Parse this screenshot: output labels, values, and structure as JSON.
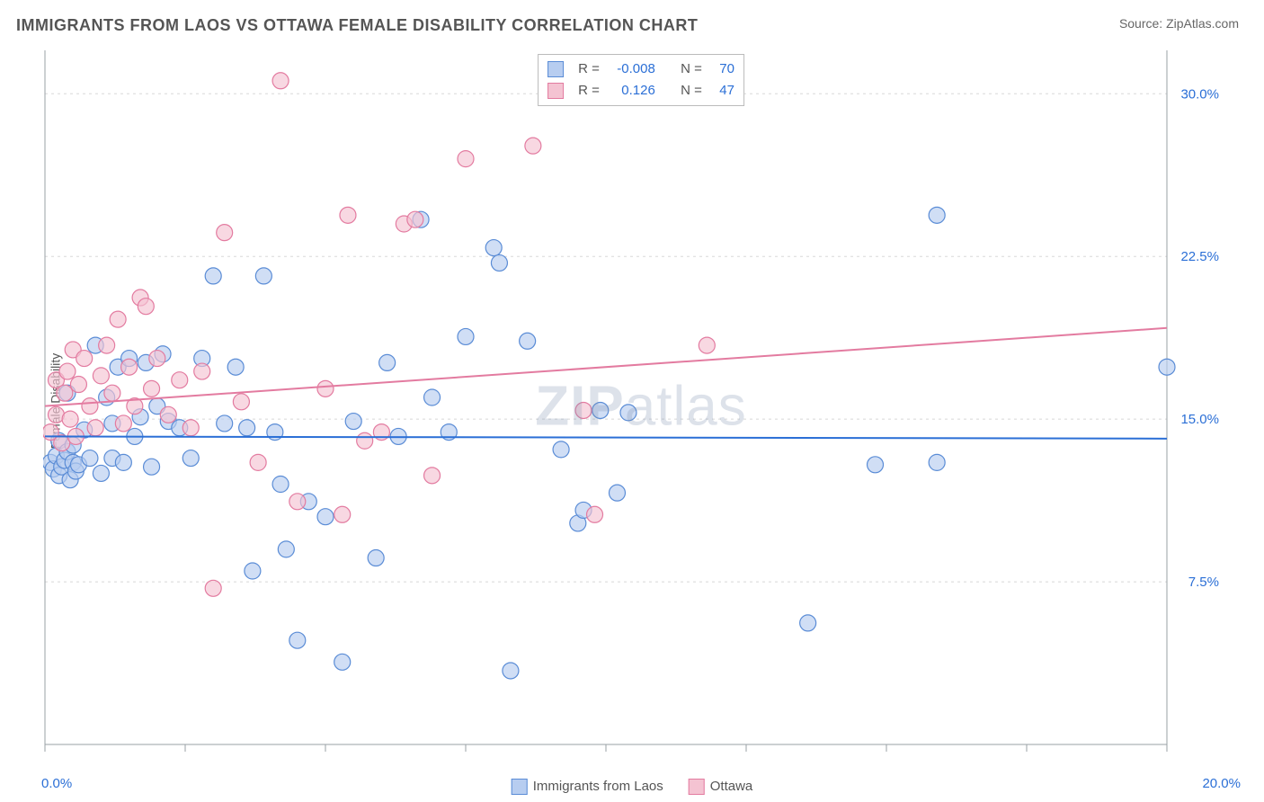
{
  "title": "IMMIGRANTS FROM LAOS VS OTTAWA FEMALE DISABILITY CORRELATION CHART",
  "source": "Source: ZipAtlas.com",
  "ylabel": "Female Disability",
  "watermark": "ZIPatlas",
  "chart": {
    "type": "scatter",
    "xlim": [
      0,
      20
    ],
    "ylim": [
      0,
      32
    ],
    "x_ticks": [
      0,
      2.5,
      5,
      7.5,
      10,
      12.5,
      15,
      17.5,
      20
    ],
    "x_tick_labels": {
      "0": "0.0%",
      "20": "20.0%"
    },
    "y_ticks": [
      7.5,
      15.0,
      22.5,
      30.0
    ],
    "y_tick_labels": [
      "7.5%",
      "15.0%",
      "22.5%",
      "30.0%"
    ],
    "grid_color": "#d8d8d8",
    "axis_color": "#9aa0a6",
    "axis_label_color": "#2b6fd6",
    "background": "#ffffff",
    "marker_radius": 9,
    "marker_stroke_width": 1.2,
    "series": [
      {
        "name": "Immigrants from Laos",
        "fill": "#b7cdf0",
        "stroke": "#5a8cd6",
        "fill_opacity": 0.65,
        "R": "-0.008",
        "N": "70",
        "trend": {
          "y0": 14.2,
          "y1": 14.1,
          "color": "#2b6fd6",
          "width": 2
        },
        "points": [
          [
            0.1,
            13.0
          ],
          [
            0.15,
            12.7
          ],
          [
            0.2,
            13.3
          ],
          [
            0.25,
            14.0
          ],
          [
            0.25,
            12.4
          ],
          [
            0.3,
            12.8
          ],
          [
            0.35,
            13.1
          ],
          [
            0.4,
            13.5
          ],
          [
            0.4,
            16.2
          ],
          [
            0.45,
            12.2
          ],
          [
            0.5,
            13.8
          ],
          [
            0.5,
            13.0
          ],
          [
            0.55,
            12.6
          ],
          [
            0.6,
            12.9
          ],
          [
            0.7,
            14.5
          ],
          [
            0.8,
            13.2
          ],
          [
            0.9,
            18.4
          ],
          [
            1.0,
            12.5
          ],
          [
            1.1,
            16.0
          ],
          [
            1.2,
            13.2
          ],
          [
            1.2,
            14.8
          ],
          [
            1.3,
            17.4
          ],
          [
            1.4,
            13.0
          ],
          [
            1.5,
            17.8
          ],
          [
            1.6,
            14.2
          ],
          [
            1.7,
            15.1
          ],
          [
            1.8,
            17.6
          ],
          [
            1.9,
            12.8
          ],
          [
            2.0,
            15.6
          ],
          [
            2.1,
            18.0
          ],
          [
            2.2,
            14.9
          ],
          [
            2.4,
            14.6
          ],
          [
            2.6,
            13.2
          ],
          [
            2.8,
            17.8
          ],
          [
            3.0,
            21.6
          ],
          [
            3.2,
            14.8
          ],
          [
            3.4,
            17.4
          ],
          [
            3.6,
            14.6
          ],
          [
            3.7,
            8.0
          ],
          [
            3.9,
            21.6
          ],
          [
            4.1,
            14.4
          ],
          [
            4.2,
            12.0
          ],
          [
            4.3,
            9.0
          ],
          [
            4.5,
            4.8
          ],
          [
            4.7,
            11.2
          ],
          [
            5.0,
            10.5
          ],
          [
            5.3,
            3.8
          ],
          [
            5.5,
            14.9
          ],
          [
            5.9,
            8.6
          ],
          [
            6.1,
            17.6
          ],
          [
            6.3,
            14.2
          ],
          [
            6.7,
            24.2
          ],
          [
            6.9,
            16.0
          ],
          [
            7.2,
            14.4
          ],
          [
            7.5,
            18.8
          ],
          [
            8.0,
            22.9
          ],
          [
            8.1,
            22.2
          ],
          [
            8.3,
            3.4
          ],
          [
            8.6,
            18.6
          ],
          [
            9.2,
            13.6
          ],
          [
            9.5,
            10.2
          ],
          [
            9.6,
            10.8
          ],
          [
            9.9,
            15.4
          ],
          [
            10.2,
            11.6
          ],
          [
            10.4,
            15.3
          ],
          [
            13.6,
            5.6
          ],
          [
            14.8,
            12.9
          ],
          [
            15.9,
            24.4
          ],
          [
            15.9,
            13.0
          ],
          [
            20.0,
            17.4
          ]
        ]
      },
      {
        "name": "Ottawa",
        "fill": "#f4c3d2",
        "stroke": "#e37ba0",
        "fill_opacity": 0.65,
        "R": "0.126",
        "N": "47",
        "trend": {
          "y0": 15.6,
          "y1": 19.2,
          "color": "#e37ba0",
          "width": 2
        },
        "points": [
          [
            0.1,
            14.4
          ],
          [
            0.2,
            15.2
          ],
          [
            0.2,
            16.8
          ],
          [
            0.3,
            13.9
          ],
          [
            0.35,
            16.2
          ],
          [
            0.4,
            17.2
          ],
          [
            0.45,
            15.0
          ],
          [
            0.5,
            18.2
          ],
          [
            0.55,
            14.2
          ],
          [
            0.6,
            16.6
          ],
          [
            0.7,
            17.8
          ],
          [
            0.8,
            15.6
          ],
          [
            0.9,
            14.6
          ],
          [
            1.0,
            17.0
          ],
          [
            1.1,
            18.4
          ],
          [
            1.2,
            16.2
          ],
          [
            1.3,
            19.6
          ],
          [
            1.4,
            14.8
          ],
          [
            1.5,
            17.4
          ],
          [
            1.6,
            15.6
          ],
          [
            1.7,
            20.6
          ],
          [
            1.8,
            20.2
          ],
          [
            1.9,
            16.4
          ],
          [
            2.0,
            17.8
          ],
          [
            2.2,
            15.2
          ],
          [
            2.4,
            16.8
          ],
          [
            2.6,
            14.6
          ],
          [
            2.8,
            17.2
          ],
          [
            3.0,
            7.2
          ],
          [
            3.2,
            23.6
          ],
          [
            3.5,
            15.8
          ],
          [
            3.8,
            13.0
          ],
          [
            4.2,
            30.6
          ],
          [
            4.5,
            11.2
          ],
          [
            5.0,
            16.4
          ],
          [
            5.3,
            10.6
          ],
          [
            5.4,
            24.4
          ],
          [
            5.7,
            14.0
          ],
          [
            6.0,
            14.4
          ],
          [
            6.4,
            24.0
          ],
          [
            6.6,
            24.2
          ],
          [
            6.9,
            12.4
          ],
          [
            7.5,
            27.0
          ],
          [
            8.7,
            27.6
          ],
          [
            9.6,
            15.4
          ],
          [
            9.8,
            10.6
          ],
          [
            11.8,
            18.4
          ]
        ]
      }
    ],
    "bottom_legend": [
      {
        "label": "Immigrants from Laos",
        "fill": "#b7cdf0",
        "stroke": "#5a8cd6"
      },
      {
        "label": "Ottawa",
        "fill": "#f4c3d2",
        "stroke": "#e37ba0"
      }
    ]
  }
}
